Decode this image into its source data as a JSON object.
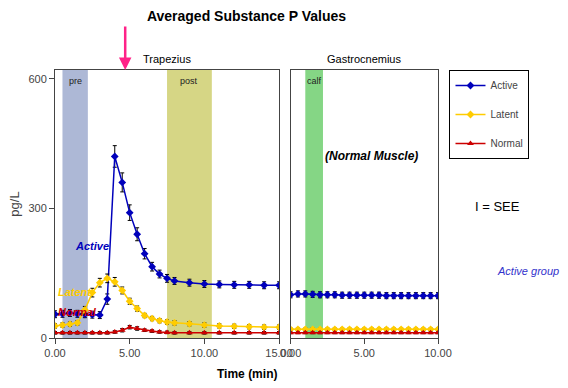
{
  "chart_data": [
    {
      "type": "line",
      "title": "Averaged Substance P Values",
      "subtitle": "Trapezius",
      "xlabel": "Time (min)",
      "ylabel": "pg/L",
      "x": [
        0.0,
        0.5,
        1.0,
        1.5,
        2.0,
        2.5,
        3.0,
        3.5,
        4.0,
        4.5,
        5.0,
        5.5,
        6.0,
        6.5,
        7.0,
        7.5,
        8.0,
        9.0,
        10.0,
        11.0,
        12.0,
        13.0,
        14.0,
        15.0
      ],
      "series": [
        {
          "name": "Active",
          "color": "#0000bb",
          "marker": "diamond",
          "values": [
            55,
            56,
            58,
            56,
            55,
            54,
            53,
            90,
            420,
            360,
            290,
            240,
            195,
            165,
            148,
            138,
            132,
            128,
            125,
            124,
            123,
            123,
            122,
            122
          ],
          "errors": [
            8,
            8,
            8,
            8,
            8,
            8,
            8,
            12,
            25,
            22,
            18,
            15,
            12,
            10,
            9,
            9,
            8,
            8,
            8,
            8,
            8,
            8,
            8,
            8
          ]
        },
        {
          "name": "Latent",
          "color": "#ffcc00",
          "marker": "diamond",
          "values": [
            28,
            30,
            32,
            35,
            65,
            105,
            128,
            138,
            130,
            110,
            85,
            68,
            52,
            45,
            40,
            37,
            35,
            33,
            30,
            28,
            27,
            26,
            25,
            25
          ],
          "errors": [
            5,
            5,
            5,
            5,
            8,
            10,
            10,
            10,
            10,
            8,
            7,
            6,
            5,
            5,
            5,
            5,
            5,
            5,
            5,
            5,
            5,
            5,
            5,
            5
          ]
        },
        {
          "name": "Normal",
          "color": "#cc0000",
          "marker": "triangle-up",
          "values": [
            12,
            12,
            12,
            12,
            12,
            12,
            12,
            12,
            14,
            18,
            25,
            22,
            18,
            16,
            14,
            13,
            12,
            12,
            12,
            12,
            12,
            12,
            12,
            12
          ],
          "errors": [
            3,
            3,
            3,
            3,
            3,
            3,
            3,
            3,
            3,
            4,
            4,
            4,
            3,
            3,
            3,
            3,
            3,
            3,
            3,
            3,
            3,
            3,
            3,
            3
          ]
        }
      ],
      "xlim": [
        0.0,
        15.0
      ],
      "xticks": [
        {
          "value": 0.0,
          "label": "0.00"
        },
        {
          "value": 5.0,
          "label": "5.00"
        },
        {
          "value": 10.0,
          "label": "10.00"
        },
        {
          "value": 15.0,
          "label": "15.00"
        }
      ],
      "ylim": [
        0,
        620
      ],
      "yticks": [
        0,
        300,
        600
      ],
      "grid": false,
      "legend": "right",
      "bands": [
        {
          "x": [
            0.5,
            2.2
          ],
          "label": "pre",
          "color": "#7788bb"
        },
        {
          "x": [
            7.5,
            10.5
          ],
          "label": "post",
          "color": "#bbbb33"
        }
      ],
      "annotations": [
        {
          "text": "Active",
          "x": 1.2,
          "y": 195,
          "color": "#0000bb"
        },
        {
          "text": "Latent",
          "x": 0.05,
          "y": 88,
          "color": "#ffcc00"
        },
        {
          "text": "Normal",
          "x": 0.05,
          "y": 42,
          "color": "#cc0000"
        }
      ],
      "arrow": {
        "x": 4.7,
        "color": "#ff2288"
      },
      "texts": [
        {
          "text": "I = SEE"
        },
        {
          "text": "Active group",
          "color": "#3333cc"
        }
      ]
    },
    {
      "type": "line",
      "subtitle": "Gastrocnemius",
      "x": [
        0.0,
        0.5,
        1.0,
        1.5,
        2.0,
        2.5,
        3.0,
        3.5,
        4.0,
        4.5,
        5.0,
        5.5,
        6.0,
        6.5,
        7.0,
        7.5,
        8.0,
        8.5,
        9.0,
        9.5,
        10.0
      ],
      "series": [
        {
          "name": "Active",
          "color": "#0000bb",
          "marker": "diamond",
          "values": [
            100,
            102,
            102,
            101,
            100,
            100,
            100,
            99,
            99,
            99,
            99,
            99,
            99,
            98,
            98,
            98,
            98,
            98,
            98,
            98,
            98
          ],
          "errors": [
            7,
            7,
            7,
            7,
            7,
            7,
            7,
            7,
            7,
            7,
            7,
            7,
            7,
            7,
            7,
            7,
            7,
            7,
            7,
            7,
            7
          ]
        },
        {
          "name": "Latent",
          "color": "#ffcc00",
          "marker": "diamond",
          "values": [
            20,
            20,
            20,
            20,
            20,
            20,
            20,
            20,
            20,
            20,
            20,
            20,
            20,
            20,
            20,
            20,
            20,
            20,
            20,
            20,
            20
          ],
          "errors": [
            3,
            3,
            3,
            3,
            3,
            3,
            3,
            3,
            3,
            3,
            3,
            3,
            3,
            3,
            3,
            3,
            3,
            3,
            3,
            3,
            3
          ]
        },
        {
          "name": "Normal",
          "color": "#cc0000",
          "marker": "triangle-up",
          "values": [
            12,
            12,
            12,
            12,
            12,
            12,
            12,
            12,
            12,
            12,
            12,
            12,
            12,
            12,
            12,
            12,
            12,
            12,
            12,
            12,
            12
          ],
          "errors": [
            2,
            2,
            2,
            2,
            2,
            2,
            2,
            2,
            2,
            2,
            2,
            2,
            2,
            2,
            2,
            2,
            2,
            2,
            2,
            2,
            2
          ]
        }
      ],
      "xlim": [
        0.0,
        10.0
      ],
      "xticks": [
        {
          "value": 0.0,
          "label": "0.00"
        },
        {
          "value": 5.0,
          "label": "5.00"
        },
        {
          "value": 10.0,
          "label": "10.00"
        }
      ],
      "ylim": [
        0,
        620
      ],
      "yticks": [
        0,
        300,
        600
      ],
      "grid": false,
      "tick_labels": "x",
      "bands": [
        {
          "x": [
            1.0,
            2.2
          ],
          "label": "calf",
          "color": "#33bb33"
        }
      ],
      "annotations": [
        {
          "text": "(Normal Muscle)"
        }
      ]
    }
  ]
}
